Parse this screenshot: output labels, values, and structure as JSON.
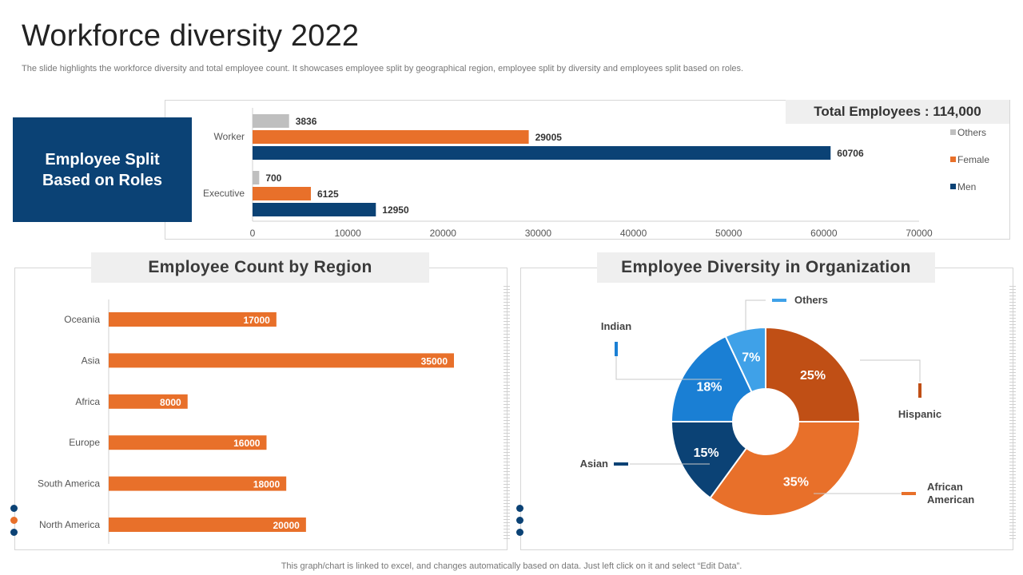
{
  "header": {
    "title": "Workforce diversity 2022",
    "subtitle": "The slide highlights the workforce diversity and total employee count. It showcases employee split by geographical region, employee split by diversity and employees split based on roles."
  },
  "footer": {
    "note": "This graph/chart is linked to excel,  and changes automatically based on data. Just left click on it and select “Edit Data”."
  },
  "roles_panel": {
    "label": "Employee Split Based on Roles",
    "total": "Total Employees : 114,000"
  },
  "region_panel": {
    "title": "Employee Count by Region"
  },
  "diversity_panel": {
    "title": "Employee Diversity in Organization"
  },
  "colors": {
    "navy": "#0b4275",
    "orange": "#e8702a",
    "gray": "#bfbfbf",
    "dark_orange": "#c04f15",
    "blue": "#1a7fd4",
    "light_blue": "#3fa1e8"
  },
  "chart_data": [
    {
      "type": "bar",
      "orientation": "horizontal",
      "categories": [
        "Worker",
        "Executive"
      ],
      "series": [
        {
          "name": "Others",
          "values": [
            3836,
            700
          ],
          "color": "#bfbfbf"
        },
        {
          "name": "Female",
          "values": [
            29005,
            6125
          ],
          "color": "#e8702a"
        },
        {
          "name": "Men",
          "values": [
            60706,
            12950
          ],
          "color": "#0b4275"
        }
      ],
      "xlim": [
        0,
        70000
      ],
      "xticks": [
        0,
        10000,
        20000,
        30000,
        40000,
        50000,
        60000,
        70000
      ],
      "legend": "right"
    },
    {
      "type": "bar",
      "orientation": "horizontal",
      "categories": [
        "Oceania",
        "Asia",
        "Africa",
        "Europe",
        "South America",
        "North America"
      ],
      "values": [
        17000,
        35000,
        8000,
        16000,
        18000,
        20000
      ],
      "color": "#e8702a",
      "xlim": [
        0,
        35000
      ]
    },
    {
      "type": "pie",
      "donut": true,
      "slices": [
        {
          "label": "Hispanic",
          "value": 25,
          "display": "25%",
          "color": "#c04f15"
        },
        {
          "label": "African American",
          "value": 35,
          "display": "35%",
          "color": "#e8702a"
        },
        {
          "label": "Asian",
          "value": 15,
          "display": "15%",
          "color": "#0b4275"
        },
        {
          "label": "Indian",
          "value": 18,
          "display": "18%",
          "color": "#1a7fd4"
        },
        {
          "label": "Others",
          "value": 7,
          "display": "7%",
          "color": "#3fa1e8"
        }
      ]
    }
  ]
}
